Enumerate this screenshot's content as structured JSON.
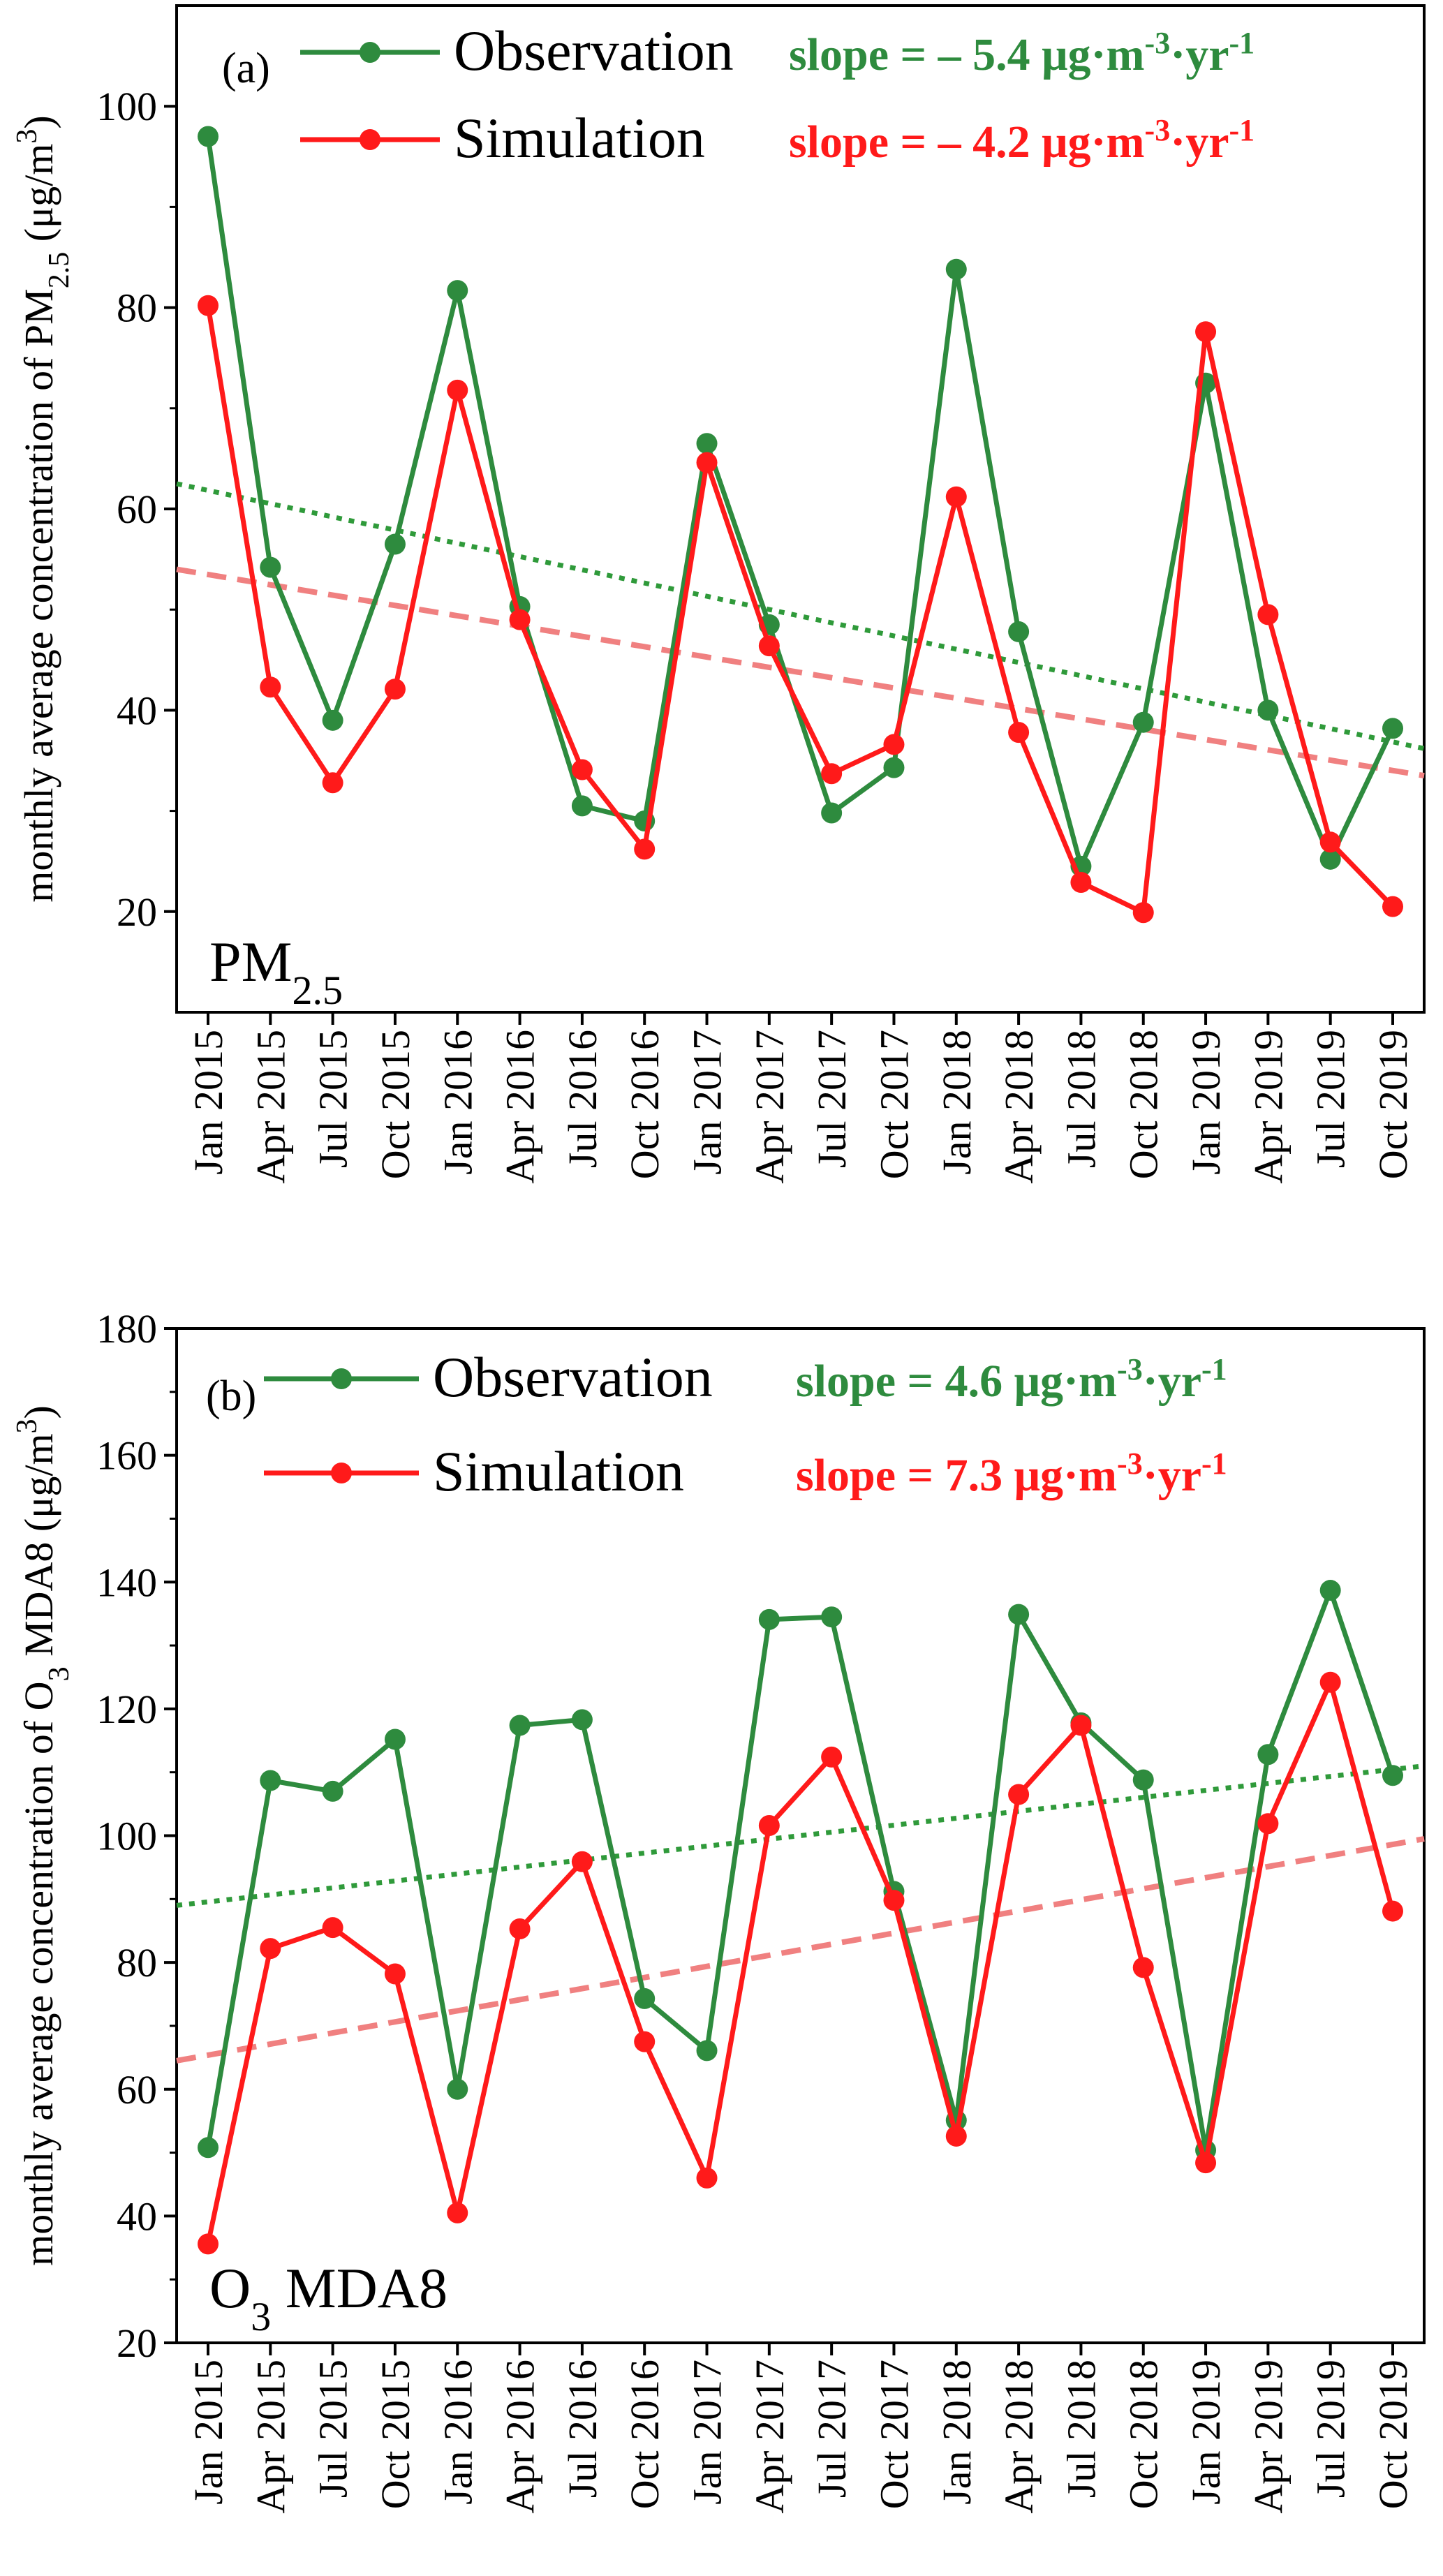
{
  "colors": {
    "observation": "#2e8b3e",
    "simulation": "#ff1a1a",
    "obs_trend": "#2f9a3a",
    "sim_trend": "#f08080"
  },
  "chart_data": [
    {
      "type": "line",
      "panel_label": "(a)",
      "panel_name": "PM",
      "panel_name_sub": "2.5",
      "ylabel_main": "monthly average concentration of PM",
      "ylabel_sub": "2.5",
      "ylabel_unit": " (μg/m",
      "ylabel_unit_sup": "3",
      "ylabel_close": ")",
      "ylim": [
        10,
        110
      ],
      "yticks": [
        20,
        40,
        60,
        80,
        100
      ],
      "categories": [
        "Jan 2015",
        "Apr 2015",
        "Jul 2015",
        "Oct 2015",
        "Jan 2016",
        "Apr 2016",
        "Jul 2016",
        "Oct 2016",
        "Jan 2017",
        "Apr 2017",
        "Jul 2017",
        "Oct 2017",
        "Jan 2018",
        "Apr 2018",
        "Jul 2018",
        "Oct 2018",
        "Jan 2019",
        "Apr 2019",
        "Jul 2019",
        "Oct 2019"
      ],
      "series": [
        {
          "name": "Observation",
          "values": [
            97.0,
            54.2,
            39.0,
            56.5,
            81.7,
            50.3,
            30.5,
            29.0,
            66.5,
            48.5,
            29.8,
            34.3,
            83.8,
            47.8,
            24.5,
            38.8,
            72.5,
            40.0,
            25.2,
            38.2
          ]
        },
        {
          "name": "Simulation",
          "values": [
            80.2,
            42.3,
            32.8,
            42.1,
            71.8,
            49.0,
            34.1,
            26.2,
            64.6,
            46.4,
            33.7,
            36.6,
            61.2,
            37.8,
            22.9,
            19.9,
            77.6,
            49.5,
            26.9,
            20.5
          ]
        }
      ],
      "trendlines": [
        {
          "series": "Observation",
          "start": 62.5,
          "end": 36.2
        },
        {
          "series": "Simulation",
          "start": 54.0,
          "end": 33.5
        }
      ],
      "legend": {
        "observation_label": "Observation",
        "simulation_label": "Simulation",
        "obs_slope_prefix": "slope = – 5.4 μg·m",
        "obs_slope_sup": "-3",
        "obs_slope_suffix": "·yr",
        "obs_slope_sup2": "-1",
        "sim_slope_prefix": "slope = – 4.2 μg·m",
        "sim_slope_sup": "-3",
        "sim_slope_suffix": "·yr",
        "sim_slope_sup2": "-1"
      }
    },
    {
      "type": "line",
      "panel_label": "(b)",
      "panel_name": "O",
      "panel_name_sub": "3",
      "panel_name_rest": " MDA8",
      "ylabel_main": "monthly average concentration of O",
      "ylabel_sub": "3",
      "ylabel_rest": " MDA8 (μg/m",
      "ylabel_unit_sup": "3",
      "ylabel_close": ")",
      "ylim": [
        20,
        180
      ],
      "yticks": [
        20,
        40,
        60,
        80,
        100,
        120,
        140,
        160,
        180
      ],
      "categories": [
        "Jan 2015",
        "Apr 2015",
        "Jul 2015",
        "Oct 2015",
        "Jan 2016",
        "Apr 2016",
        "Jul 2016",
        "Oct 2016",
        "Jan 2017",
        "Apr 2017",
        "Jul 2017",
        "Oct 2017",
        "Jan 2018",
        "Apr 2018",
        "Jul 2018",
        "Oct 2018",
        "Jan 2019",
        "Apr 2019",
        "Jul 2019",
        "Oct 2019"
      ],
      "series": [
        {
          "name": "Observation",
          "values": [
            50.8,
            108.7,
            107.0,
            115.2,
            60.0,
            117.4,
            118.3,
            74.3,
            66.1,
            134.1,
            134.5,
            91.2,
            55.1,
            134.9,
            117.8,
            108.8,
            50.4,
            112.8,
            138.7,
            109.5
          ]
        },
        {
          "name": "Simulation",
          "values": [
            35.6,
            82.2,
            85.5,
            78.2,
            40.5,
            85.3,
            95.9,
            67.5,
            46.0,
            101.6,
            112.4,
            89.8,
            52.6,
            106.5,
            117.4,
            79.2,
            48.4,
            101.9,
            124.2,
            88.1
          ]
        }
      ],
      "trendlines": [
        {
          "series": "Observation",
          "start": 89.0,
          "end": 111.0
        },
        {
          "series": "Simulation",
          "start": 64.5,
          "end": 99.5
        }
      ],
      "legend": {
        "observation_label": "Observation",
        "simulation_label": "Simulation",
        "obs_slope_prefix": "slope = 4.6 μg·m",
        "obs_slope_sup": "-3",
        "obs_slope_suffix": "·yr",
        "obs_slope_sup2": "-1",
        "sim_slope_prefix": "slope = 7.3 μg·m",
        "sim_slope_sup": "-3",
        "sim_slope_suffix": "·yr",
        "sim_slope_sup2": "-1"
      }
    }
  ]
}
